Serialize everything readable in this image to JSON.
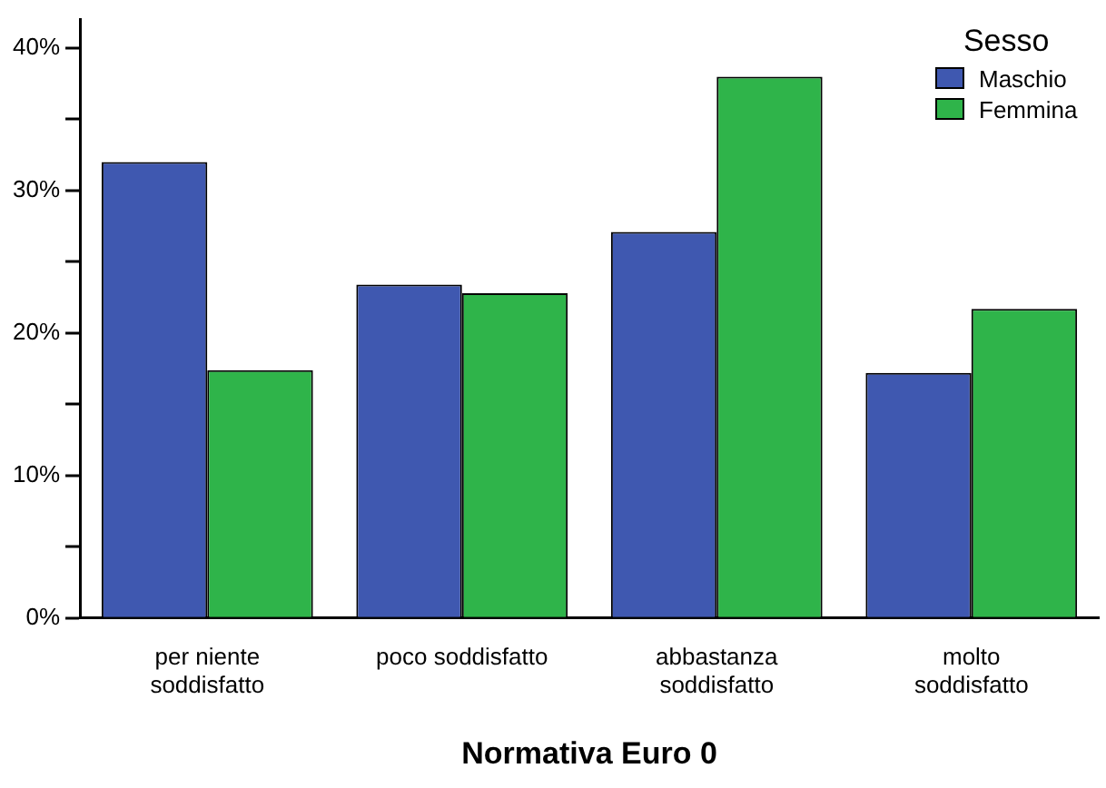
{
  "chart_data": {
    "type": "bar",
    "xlabel": "Normativa Euro 0",
    "legend_title": "Sesso",
    "legend": "top right",
    "grid": false,
    "categories": [
      "per niente\nsoddisfatto",
      "poco soddisfatto",
      "abbastanza\nsoddisfatto",
      "molto\nsoddisfatto"
    ],
    "series": [
      {
        "name": "Maschio",
        "color": "#3f58b0",
        "values": [
          32.0,
          23.4,
          27.1,
          17.2
        ]
      },
      {
        "name": "Femmina",
        "color": "#2fb44a",
        "values": [
          17.4,
          22.8,
          38.0,
          21.7
        ]
      }
    ],
    "ylim": [
      0,
      42
    ],
    "yticks": [
      {
        "value": 0,
        "label": "0%"
      },
      {
        "value": 5,
        "label": null
      },
      {
        "value": 10,
        "label": "10%"
      },
      {
        "value": 15,
        "label": null
      },
      {
        "value": 20,
        "label": "20%"
      },
      {
        "value": 25,
        "label": null
      },
      {
        "value": 30,
        "label": "30%"
      },
      {
        "value": 35,
        "label": null
      },
      {
        "value": 40,
        "label": "40%"
      }
    ]
  }
}
